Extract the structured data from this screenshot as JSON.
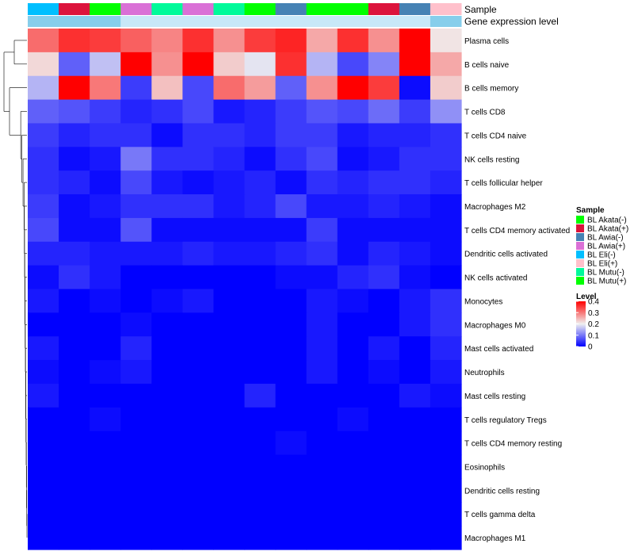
{
  "chart_data": {
    "type": "heatmap",
    "annotation_labels": {
      "sample": "Sample",
      "gene_expression_level": "Gene expression level"
    },
    "sample_colors": {
      "BL Akata(-)": "#00FF00",
      "BL Akata(+)": "#DC143C",
      "BL Awia(-)": "#4682B4",
      "BL Awia(+)": "#DA70D6",
      "BL Eli(-)": "#00BFFF",
      "BL Eli(+)": "#FFC0CB",
      "BL Mutu(-)": "#00FA9A",
      "BL Mutu(+)": "#00FF00"
    },
    "columns": [
      "BL Eli(-)",
      "BL Akata(+)",
      "BL Akata(-)",
      "BL Awia(+)",
      "BL Mutu(-)",
      "BL Awia(+)",
      "BL Mutu(-)",
      "BL Mutu(+)",
      "BL Awia(-)",
      "BL Akata(-)",
      "BL Mutu(+)",
      "BL Akata(+)",
      "BL Awia(-)",
      "BL Eli(+)"
    ],
    "gene_expression_colors": [
      "#87CEEB",
      "#87CEEB",
      "#87CEEB",
      "#C8E8F8",
      "#C8E8F8",
      "#C8E8F8",
      "#C8E8F8",
      "#C8E8F8",
      "#C8E8F8",
      "#C8E8F8",
      "#C8E8F8",
      "#C8E8F8",
      "#C8E8F8",
      "#87CEEB"
    ],
    "rows": [
      "Plasma cells",
      "B cells naive",
      "B cells memory",
      "T cells CD8",
      "T cells CD4 naive",
      "NK cells resting",
      "T cells follicular helper",
      "Macrophages M2",
      "T cells CD4 memory activated",
      "Dendritic cells activated",
      "NK cells activated",
      "Monocytes",
      "Macrophages M0",
      "Mast cells activated",
      "Neutrophils",
      "Mast cells resting",
      "T cells regulatory  Tregs",
      "T cells CD4 memory resting",
      "Eosinophils",
      "Dendritic cells resting",
      "T cells gamma delta",
      "Macrophages M1"
    ],
    "values": [
      [
        0.31,
        0.36,
        0.35,
        0.32,
        0.29,
        0.36,
        0.28,
        0.35,
        0.37,
        0.26,
        0.36,
        0.28,
        0.4,
        0.21
      ],
      [
        0.22,
        0.08,
        0.16,
        0.42,
        0.28,
        0.44,
        0.23,
        0.19,
        0.36,
        0.15,
        0.06,
        0.11,
        0.43,
        0.26
      ],
      [
        0.15,
        0.4,
        0.3,
        0.05,
        0.24,
        0.06,
        0.31,
        0.27,
        0.08,
        0.28,
        0.4,
        0.35,
        0.01,
        0.23
      ],
      [
        0.08,
        0.07,
        0.05,
        0.03,
        0.04,
        0.06,
        0.02,
        0.03,
        0.05,
        0.07,
        0.06,
        0.09,
        0.05,
        0.12
      ],
      [
        0.05,
        0.03,
        0.04,
        0.04,
        0.01,
        0.04,
        0.04,
        0.03,
        0.05,
        0.05,
        0.02,
        0.03,
        0.03,
        0.04
      ],
      [
        0.04,
        0.01,
        0.02,
        0.1,
        0.04,
        0.04,
        0.03,
        0.01,
        0.04,
        0.06,
        0.01,
        0.02,
        0.04,
        0.04
      ],
      [
        0.04,
        0.03,
        0.01,
        0.06,
        0.02,
        0.01,
        0.02,
        0.03,
        0.01,
        0.04,
        0.03,
        0.04,
        0.04,
        0.03
      ],
      [
        0.05,
        0.01,
        0.02,
        0.04,
        0.04,
        0.04,
        0.02,
        0.03,
        0.06,
        0.02,
        0.02,
        0.03,
        0.02,
        0.01
      ],
      [
        0.06,
        0.01,
        0.01,
        0.07,
        0.01,
        0.01,
        0.01,
        0.01,
        0.01,
        0.05,
        0.01,
        0.01,
        0.01,
        0.01
      ],
      [
        0.03,
        0.03,
        0.02,
        0.02,
        0.02,
        0.03,
        0.02,
        0.02,
        0.03,
        0.04,
        0.01,
        0.03,
        0.02,
        0.01
      ],
      [
        0.01,
        0.04,
        0.02,
        0.0,
        0.0,
        0.0,
        0.0,
        0.0,
        0.01,
        0.01,
        0.03,
        0.04,
        0.01,
        0.0
      ],
      [
        0.02,
        0.0,
        0.01,
        0.0,
        0.01,
        0.02,
        0.0,
        0.0,
        0.0,
        0.02,
        0.01,
        0.0,
        0.02,
        0.04
      ],
      [
        0.0,
        0.0,
        0.0,
        0.01,
        0.0,
        0.0,
        0.0,
        0.0,
        0.0,
        0.02,
        0.0,
        0.0,
        0.02,
        0.04
      ],
      [
        0.02,
        0.0,
        0.0,
        0.03,
        0.0,
        0.0,
        0.0,
        0.0,
        0.0,
        0.02,
        0.0,
        0.02,
        0.0,
        0.03
      ],
      [
        0.01,
        0.0,
        0.01,
        0.02,
        0.0,
        0.0,
        0.0,
        0.0,
        0.0,
        0.02,
        0.0,
        0.01,
        0.0,
        0.02
      ],
      [
        0.02,
        0.0,
        0.0,
        0.0,
        0.0,
        0.0,
        0.0,
        0.03,
        0.0,
        0.0,
        0.0,
        0.0,
        0.02,
        0.01
      ],
      [
        0.0,
        0.0,
        0.01,
        0.0,
        0.0,
        0.0,
        0.0,
        0.0,
        0.0,
        0.0,
        0.01,
        0.0,
        0.0,
        0.0
      ],
      [
        0.0,
        0.0,
        0.0,
        0.0,
        0.0,
        0.0,
        0.0,
        0.0,
        0.01,
        0.0,
        0.0,
        0.0,
        0.0,
        0.0
      ],
      [
        0.0,
        0.0,
        0.0,
        0.0,
        0.0,
        0.0,
        0.0,
        0.0,
        0.0,
        0.0,
        0.0,
        0.0,
        0.0,
        0.0
      ],
      [
        0.0,
        0.0,
        0.0,
        0.0,
        0.0,
        0.0,
        0.0,
        0.0,
        0.0,
        0.0,
        0.0,
        0.0,
        0.0,
        0.0
      ],
      [
        0.0,
        0.0,
        0.0,
        0.0,
        0.0,
        0.0,
        0.0,
        0.0,
        0.0,
        0.0,
        0.0,
        0.0,
        0.0,
        0.0
      ],
      [
        0.0,
        0.0,
        0.0,
        0.0,
        0.0,
        0.0,
        0.0,
        0.0,
        0.0,
        0.0,
        0.0,
        0.0,
        0.0,
        0.0
      ]
    ],
    "color_scale": {
      "min": 0,
      "mid": 0.2,
      "max": 0.4,
      "low_color": "#0000FF",
      "mid_color": "#F0F0F0",
      "high_color": "#FF0000"
    },
    "legend": {
      "sample_title": "Sample",
      "sample_entries": [
        "BL Akata(-)",
        "BL Akata(+)",
        "BL Awia(-)",
        "BL Awia(+)",
        "BL Eli(-)",
        "BL Eli(+)",
        "BL Mutu(-)",
        "BL Mutu(+)"
      ],
      "level_title": "Level",
      "level_ticks": [
        "0.4",
        "0.3",
        "0.2",
        "0.1",
        "0"
      ],
      "level_tick_values": [
        0.4,
        0.3,
        0.2,
        0.1,
        0
      ]
    }
  }
}
